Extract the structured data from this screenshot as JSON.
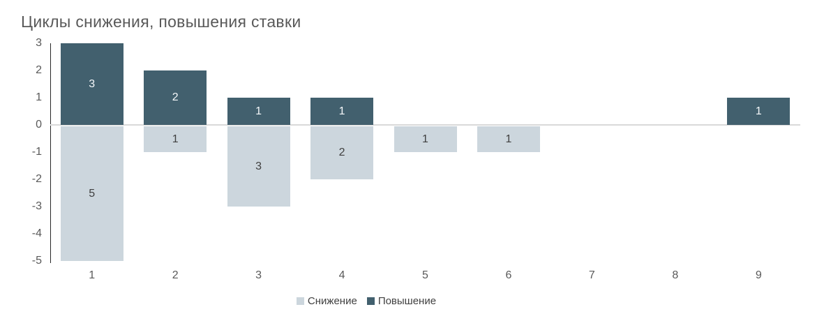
{
  "chart": {
    "title": "Циклы снижения, повышения ставки"
  },
  "chart_data": {
    "type": "bar",
    "subtype": "diverging-stacked",
    "title": "Циклы снижения, повышения ставки",
    "categories": [
      "1",
      "2",
      "3",
      "4",
      "5",
      "6",
      "7",
      "8",
      "9"
    ],
    "series": [
      {
        "name": "Снижение",
        "key": "decrease",
        "direction": "negative",
        "color": "#ccd6dd",
        "label_color": "#3f3f3f",
        "values": [
          5,
          1,
          3,
          2,
          1,
          1,
          null,
          null,
          null
        ]
      },
      {
        "name": "Повышение",
        "key": "increase",
        "direction": "positive",
        "color": "#42606e",
        "label_color": "#f5f8fa",
        "values": [
          3,
          2,
          1,
          1,
          null,
          null,
          null,
          null,
          1
        ]
      }
    ],
    "yticks": [
      3,
      2,
      1,
      0,
      -1,
      -2,
      -3,
      -4,
      -5
    ],
    "ylim": [
      -5,
      3
    ],
    "xlabel": "",
    "ylabel": "",
    "grid": "zero-line-only",
    "legend_position": "bottom",
    "colors": {
      "title": "#595959",
      "axis_labels": "#595959",
      "axis_line": "#262626",
      "zero_line": "#d9d9d9",
      "legend_text": "#404040",
      "background": "#ffffff"
    }
  }
}
